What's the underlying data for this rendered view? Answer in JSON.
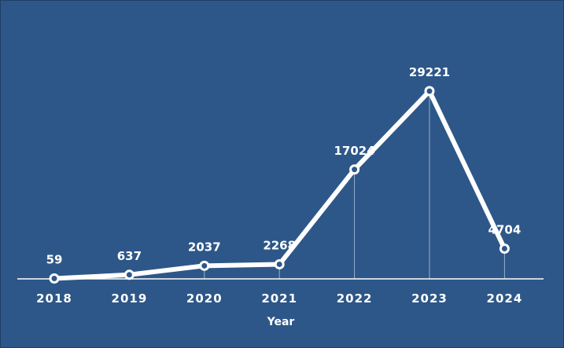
{
  "chart_data": {
    "type": "line",
    "title": "",
    "xlabel": "Year",
    "ylabel": "",
    "categories": [
      "2018",
      "2019",
      "2020",
      "2021",
      "2022",
      "2023",
      "2024"
    ],
    "series": [
      {
        "values": [
          59,
          637,
          2037,
          2268,
          17024,
          29221,
          4704
        ]
      }
    ],
    "data_labels": [
      "59",
      "637",
      "2037",
      "2268",
      "17024",
      "29221",
      "4704"
    ],
    "ylim": [
      0,
      29221
    ],
    "grid": false,
    "legend": "none",
    "colors": {
      "background": "#2d5788",
      "line": "#ffffff",
      "marker_fill": "#2d5788",
      "drop_line": "#c8d4e6"
    }
  }
}
